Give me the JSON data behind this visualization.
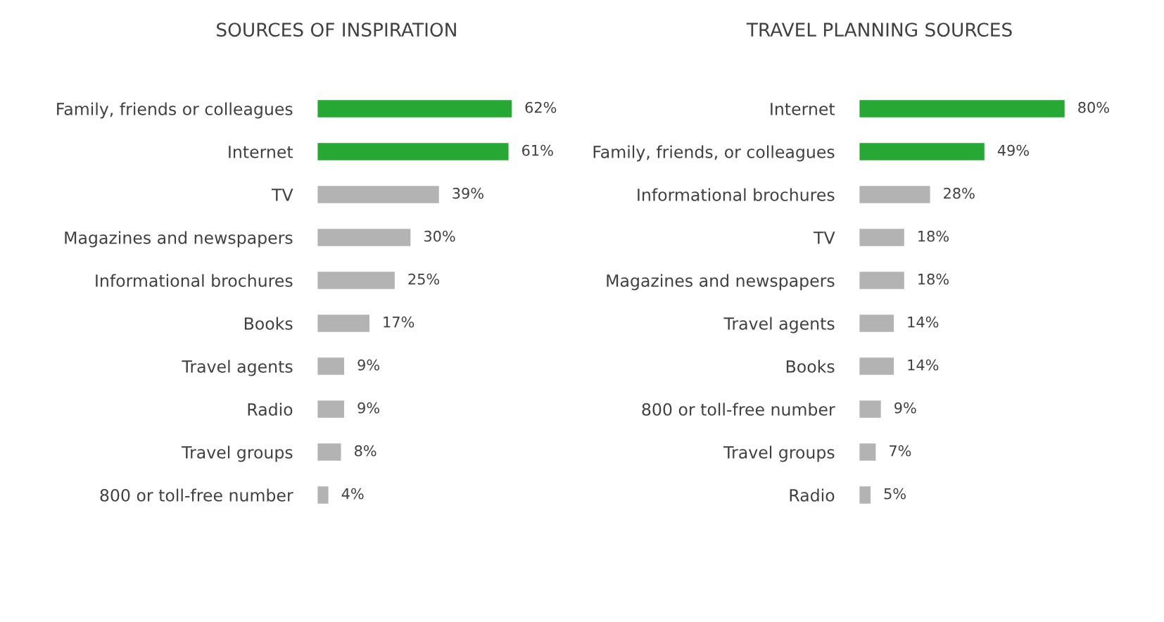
{
  "chart_data": [
    {
      "type": "bar",
      "orientation": "horizontal",
      "title": "SOURCES OF INSPIRATION",
      "categories": [
        "Family, friends or colleagues",
        "Internet",
        "TV",
        "Magazines and newspapers",
        "Informational brochures",
        "Books",
        "Travel agents",
        "Radio",
        "Travel groups",
        "800 or toll-free number"
      ],
      "values": [
        62,
        61,
        39,
        30,
        25,
        17,
        9,
        9,
        8,
        4
      ],
      "value_labels": [
        "62%",
        "61%",
        "39%",
        "30%",
        "25%",
        "17%",
        "9%",
        "9%",
        "8%",
        "4%"
      ],
      "colors": [
        "#27a834",
        "#27a834",
        "#b3b3b3",
        "#b3b3b3",
        "#b3b3b3",
        "#b3b3b3",
        "#b3b3b3",
        "#b3b3b3",
        "#b3b3b3",
        "#b3b3b3"
      ]
    },
    {
      "type": "bar",
      "orientation": "horizontal",
      "title": "TRAVEL PLANNING SOURCES",
      "categories": [
        "Internet",
        "Family, friends, or colleagues",
        "Informational brochures",
        "TV",
        "Magazines and newspapers",
        "Travel agents",
        "Books",
        "800 or toll-free number",
        "Travel groups",
        "Radio"
      ],
      "values": [
        80,
        49,
        28,
        18,
        18,
        14,
        14,
        9,
        7,
        5
      ],
      "value_labels": [
        "80%",
        "49%",
        "28%",
        "18%",
        "18%",
        "14%",
        "14%",
        "9%",
        "7%",
        "5%"
      ],
      "colors": [
        "#27a834",
        "#27a834",
        "#b3b3b3",
        "#b3b3b3",
        "#b3b3b3",
        "#b3b3b3",
        "#b3b3b3",
        "#b3b3b3",
        "#b3b3b3",
        "#b3b3b3"
      ]
    }
  ]
}
